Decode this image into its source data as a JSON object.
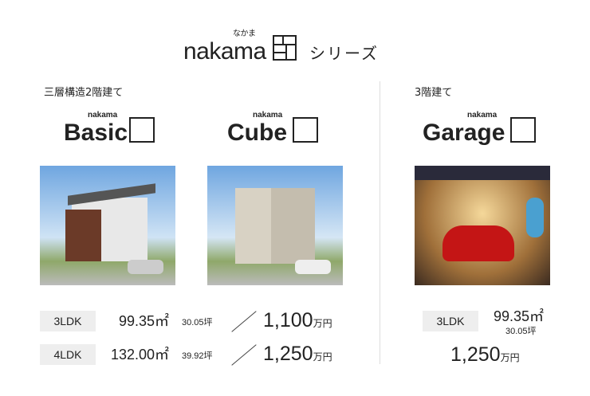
{
  "header": {
    "ruby": "なかま",
    "brand": "nakama",
    "suffix": "シリーズ"
  },
  "sections": {
    "left_label": "三層構造2階建て",
    "right_label": "3階建て"
  },
  "products": [
    {
      "logo_ruby": "nakama",
      "logo_name": "Basic"
    },
    {
      "logo_ruby": "nakama",
      "logo_name": "Cube"
    },
    {
      "logo_ruby": "nakama",
      "logo_name": "Garage"
    }
  ],
  "left_rows": [
    {
      "layout": "3LDK",
      "area": "99.35㎡",
      "tsubo": "30.05坪",
      "price": "1,100",
      "unit": "万円"
    },
    {
      "layout": "4LDK",
      "area": "132.00㎡",
      "tsubo": "39.92坪",
      "price": "1,250",
      "unit": "万円"
    }
  ],
  "right_row": {
    "layout": "3LDK",
    "area": "99.35㎡",
    "tsubo": "30.05坪",
    "price": "1,250",
    "unit": "万円"
  }
}
